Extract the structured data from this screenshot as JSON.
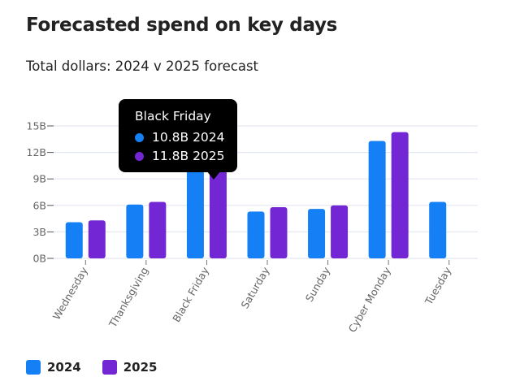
{
  "header": {
    "title": "Forecasted spend on key days",
    "subtitle": "Total dollars: 2024 v 2025 forecast"
  },
  "chart_data": {
    "type": "bar",
    "title": "Forecasted spend on key days",
    "subtitle": "Total dollars: 2024 v 2025 forecast",
    "categories": [
      "Wednesday",
      "Thanksgiving",
      "Black Friday",
      "Saturday",
      "Sunday",
      "Cyber Monday",
      "Tuesday"
    ],
    "series": [
      {
        "name": "2024",
        "color": "#1580f6",
        "values": [
          4.1,
          6.1,
          10.8,
          5.3,
          5.6,
          13.3,
          6.4
        ]
      },
      {
        "name": "2025",
        "color": "#7326d3",
        "values": [
          4.3,
          6.4,
          11.8,
          5.8,
          6.0,
          14.3,
          null
        ]
      }
    ],
    "yticks": [
      "0B",
      "3B",
      "6B",
      "9B",
      "12B",
      "15B"
    ],
    "ytick_values": [
      0,
      3,
      6,
      9,
      12,
      15
    ],
    "ylim": [
      0,
      15
    ],
    "grid": true,
    "legend": "bottom-left",
    "xlabel": "",
    "ylabel": ""
  },
  "tooltip": {
    "title": "Black Friday",
    "rows": [
      {
        "text": "10.8B 2024",
        "color": "#1580f6"
      },
      {
        "text": "11.8B 2025",
        "color": "#7326d3"
      }
    ]
  }
}
